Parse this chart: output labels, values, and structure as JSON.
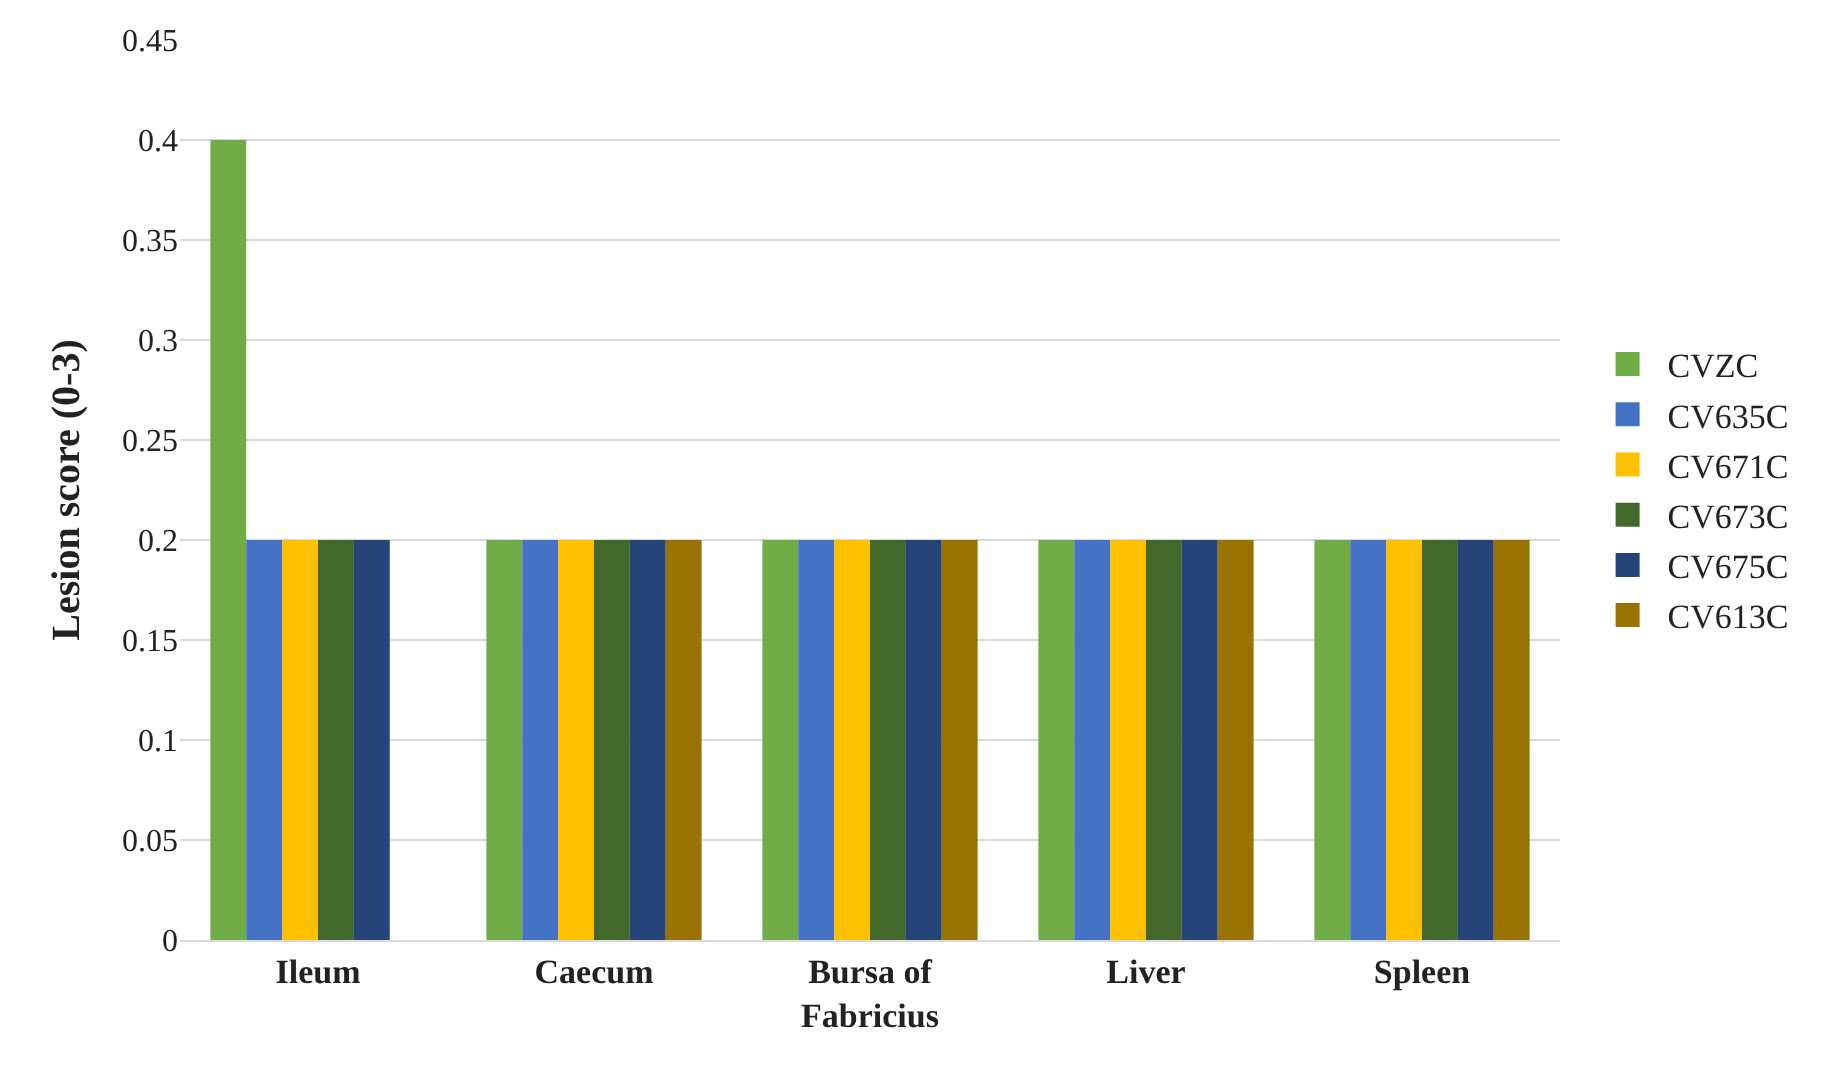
{
  "chart_data": {
    "type": "bar",
    "ylabel": "Lesion score (0-3)",
    "categories": [
      "Ileum",
      "Caecum",
      "Bursa of\nFabricius",
      "Liver",
      "Spleen"
    ],
    "series": [
      {
        "name": "CVZC",
        "color": "#70ad47",
        "values": [
          0.4,
          0.2,
          0.2,
          0.2,
          0.2
        ]
      },
      {
        "name": "CV635C",
        "color": "#4472c4",
        "values": [
          0.2,
          0.2,
          0.2,
          0.2,
          0.2
        ]
      },
      {
        "name": "CV671C",
        "color": "#ffc000",
        "values": [
          0.2,
          0.2,
          0.2,
          0.2,
          0.2
        ]
      },
      {
        "name": "CV673C",
        "color": "#43682b",
        "values": [
          0.2,
          0.2,
          0.2,
          0.2,
          0.2
        ]
      },
      {
        "name": "CV675C",
        "color": "#264478",
        "values": [
          0.2,
          0.2,
          0.2,
          0.2,
          0.2
        ]
      },
      {
        "name": "CV613C",
        "color": "#997300",
        "values": [
          0,
          0.2,
          0.2,
          0.2,
          0.2
        ]
      }
    ],
    "ylim": [
      0,
      0.45
    ],
    "yticks": [
      0,
      0.05,
      0.1,
      0.15,
      0.2,
      0.25,
      0.3,
      0.35,
      0.4,
      0.45
    ],
    "grid": "y",
    "legend": "right"
  }
}
